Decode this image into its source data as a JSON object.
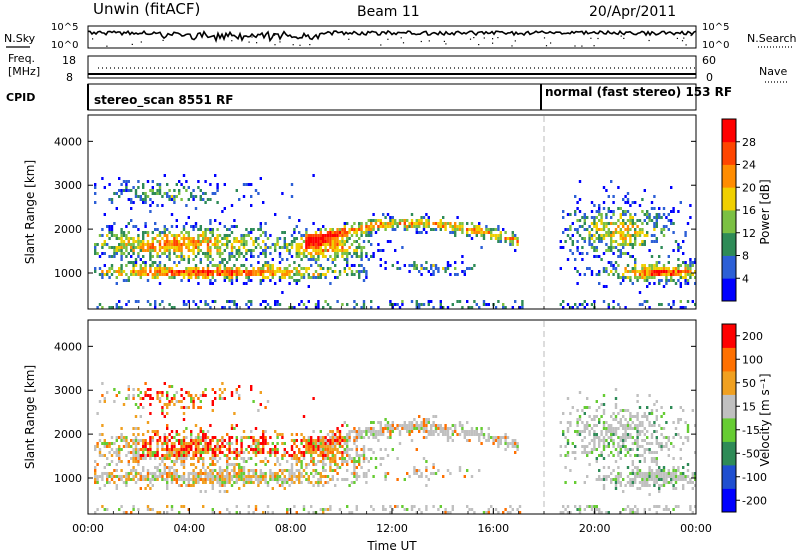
{
  "header": {
    "station": "Unwin (fitACF)",
    "beam": "Beam 11",
    "date": "20/Apr/2011"
  },
  "top_panels": {
    "nsky": {
      "label": "N.Sky",
      "ticks": [
        "10^5",
        "10^0"
      ],
      "right_ticks": [
        "10^5",
        "10^0"
      ],
      "right_label": "N.Search"
    },
    "freq": {
      "label_1": "Freq.",
      "label_2": "[MHz]",
      "ticks": [
        "18",
        "8"
      ],
      "right_ticks": [
        "60",
        "0"
      ],
      "right_label": "Nave"
    },
    "cpid": {
      "label": "CPID",
      "segments": [
        {
          "text": "stereo_scan 8551 RF",
          "start_hour": 0
        },
        {
          "text": "normal (fast stereo) 153 RF",
          "start_hour": 18
        }
      ]
    }
  },
  "colors": {
    "power": [
      "#0000ff",
      "#2c5fd6",
      "#2e8b57",
      "#7bc043",
      "#f0d000",
      "#ff8c00",
      "#ff4500",
      "#ff0000"
    ],
    "velocity": [
      "#0000ff",
      "#1f4fd0",
      "#2e8b57",
      "#66cc33",
      "#c0c0c0",
      "#f0a020",
      "#ff7000",
      "#ff0000"
    ]
  },
  "chart_data": [
    {
      "type": "heatmap",
      "ylabel": "Slant Range [km]",
      "xlabel": "Time UT",
      "x_ticks": [
        "00:00",
        "04:00",
        "08:00",
        "12:00",
        "16:00",
        "20:00",
        "00:00"
      ],
      "xlim_hours": [
        0,
        24
      ],
      "ylim_km": [
        180,
        4600
      ],
      "y_ticks": [
        "1000",
        "2000",
        "3000",
        "4000"
      ],
      "colorbar": {
        "label": "Power [dB]",
        "ticks": [
          "28",
          "24",
          "20",
          "16",
          "12",
          "8",
          "4"
        ],
        "range": [
          0,
          32
        ]
      },
      "data_gap_hours": [
        17.1,
        18.6
      ]
    },
    {
      "type": "heatmap",
      "ylabel": "Slant Range [km]",
      "xlabel": "Time UT",
      "x_ticks": [
        "00:00",
        "04:00",
        "08:00",
        "12:00",
        "16:00",
        "20:00",
        "00:00"
      ],
      "xlim_hours": [
        0,
        24
      ],
      "ylim_km": [
        180,
        4600
      ],
      "y_ticks": [
        "1000",
        "2000",
        "3000",
        "4000"
      ],
      "colorbar": {
        "label": "Velocity [m s⁻¹]",
        "ticks": [
          "200",
          "100",
          "50",
          "15",
          "-15",
          "-50",
          "-100",
          "-200"
        ],
        "range": [
          -250,
          250
        ]
      },
      "data_gap_hours": [
        17.1,
        18.6
      ]
    }
  ]
}
